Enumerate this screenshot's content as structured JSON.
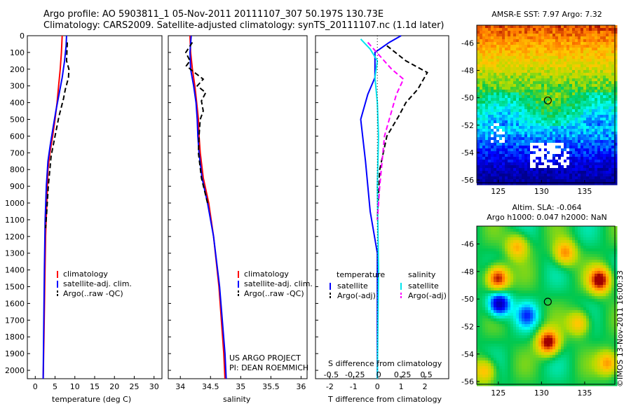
{
  "header": {
    "title_line1": "Argo profile: AO 5903811_1 05-Nov-2011 20111107_307 50.197S 130.73E",
    "title_line2": "Climatology: CARS2009. Satellite-adjusted climatology: synTS_20111107.nc (1.1d later)"
  },
  "credits": {
    "project": "US ARGO PROJECT",
    "pi": "PI: DEAN ROEMMICH",
    "imos": "©IMOS 13-Nov-2011 16:00:33"
  },
  "colors": {
    "climatology": "#ff0000",
    "satellite": "#0000ff",
    "argo": "#000000",
    "salinity_satellite": "#00e5ee",
    "salinity_argo": "#ff00ff"
  },
  "chart_data": [
    {
      "type": "line",
      "id": "temperature",
      "xlabel": "temperature (deg C)",
      "ylabel": "",
      "xlim": [
        -2,
        32
      ],
      "ylim": [
        2050,
        0
      ],
      "xticks": [
        0,
        5,
        10,
        15,
        20,
        25,
        30
      ],
      "yticks": [
        0,
        100,
        200,
        300,
        400,
        500,
        600,
        700,
        800,
        900,
        1000,
        1100,
        1200,
        1300,
        1400,
        1500,
        1600,
        1700,
        1800,
        1900,
        2000
      ],
      "legend": [
        "climatology",
        "satellite-adj. clim.",
        "Argo(..raw -QC)"
      ],
      "legend_position": "lower-center",
      "series": [
        {
          "name": "climatology",
          "style": "solid",
          "color": "#ff0000",
          "x": [
            6.8,
            6.6,
            6.3,
            5.9,
            5.5,
            5.0,
            4.4,
            3.7,
            3.2,
            2.9,
            2.6,
            2.4,
            2.2,
            2.0
          ],
          "y": [
            0,
            100,
            200,
            300,
            400,
            500,
            600,
            700,
            800,
            1000,
            1200,
            1500,
            1800,
            2050
          ]
        },
        {
          "name": "satellite-adj. clim.",
          "style": "solid",
          "color": "#0000ff",
          "x": [
            7.9,
            7.8,
            7.4,
            6.8,
            6.0,
            5.2,
            4.5,
            3.8,
            3.2,
            2.8,
            2.5,
            2.3,
            2.1,
            2.0
          ],
          "y": [
            0,
            60,
            150,
            250,
            350,
            450,
            550,
            650,
            750,
            900,
            1100,
            1400,
            1800,
            2050
          ]
        },
        {
          "name": "Argo(..raw -QC)",
          "style": "dashed",
          "color": "#000000",
          "x": [
            8.1,
            7.9,
            8.5,
            8.4,
            7.6,
            7.1,
            6.0,
            5.0,
            4.0,
            3.3,
            2.9,
            2.6
          ],
          "y": [
            40,
            150,
            200,
            250,
            320,
            380,
            480,
            600,
            720,
            900,
            1050,
            1150
          ]
        }
      ]
    },
    {
      "type": "line",
      "id": "salinity",
      "xlabel": "salinity",
      "ylabel": "",
      "xlim": [
        33.8,
        36.1
      ],
      "ylim": [
        2050,
        0
      ],
      "xticks": [
        34,
        34.5,
        35,
        35.5,
        36
      ],
      "legend": [
        "climatology",
        "satellite-adj. clim.",
        "Argo(..raw -QC)"
      ],
      "legend_position": "lower-center",
      "series": [
        {
          "name": "climatology",
          "style": "solid",
          "color": "#ff0000",
          "x": [
            34.16,
            34.17,
            34.2,
            34.24,
            34.27,
            34.3,
            34.31,
            34.33,
            34.38,
            34.47,
            34.55,
            34.64,
            34.72,
            34.74
          ],
          "y": [
            0,
            100,
            200,
            300,
            400,
            500,
            600,
            700,
            850,
            1000,
            1200,
            1500,
            1900,
            2050
          ]
        },
        {
          "name": "satellite-adj. clim.",
          "style": "solid",
          "color": "#0000ff",
          "x": [
            34.18,
            34.16,
            34.17,
            34.22,
            34.26,
            34.28,
            34.29,
            34.31,
            34.36,
            34.45,
            34.55,
            34.65,
            34.74,
            34.76
          ],
          "y": [
            0,
            100,
            200,
            300,
            400,
            500,
            600,
            700,
            850,
            1000,
            1200,
            1500,
            1900,
            2050
          ]
        },
        {
          "name": "Argo(..raw -QC)",
          "style": "dashed",
          "color": "#000000",
          "x": [
            34.2,
            34.09,
            34.16,
            34.1,
            34.2,
            34.38,
            34.28,
            34.42,
            34.35,
            34.38,
            34.33,
            34.31,
            34.3,
            34.35,
            34.45
          ],
          "y": [
            40,
            100,
            150,
            180,
            210,
            260,
            300,
            340,
            390,
            450,
            500,
            600,
            700,
            850,
            1000
          ]
        }
      ]
    },
    {
      "type": "line",
      "id": "difference",
      "xlabel": "T difference from climatology",
      "xlabel_top": "S difference from climatology",
      "ylabel": "",
      "xlim": [
        -2.6,
        3.0
      ],
      "ylim": [
        2050,
        0
      ],
      "xticks": [
        -2,
        -1,
        0,
        1,
        2
      ],
      "sticks_labels": [
        "-0.5",
        "-0.25",
        "0",
        "0.25",
        "0.5"
      ],
      "legend_groups": [
        "temperature",
        "salinity"
      ],
      "legend": [
        "satellite",
        "Argo(-adj)",
        "satellite",
        "Argo(-adj)"
      ],
      "legend_position": "lower-center",
      "series": [
        {
          "name": "satellite",
          "group": "temperature",
          "style": "solid",
          "color": "#0000ff",
          "x": [
            1.0,
            0.5,
            -0.1,
            -0.1,
            -0.4,
            -0.7,
            -0.5,
            -0.3,
            0.0,
            0.0
          ],
          "y": [
            0,
            40,
            100,
            250,
            350,
            500,
            750,
            1050,
            1300,
            2050
          ]
        },
        {
          "name": "Argo(-adj)",
          "group": "temperature",
          "style": "dashed",
          "color": "#000000",
          "x": [
            0.4,
            1.2,
            2.1,
            1.7,
            1.2,
            0.9,
            0.4,
            0.1,
            0.0
          ],
          "y": [
            60,
            150,
            220,
            320,
            400,
            480,
            600,
            800,
            1100
          ]
        },
        {
          "name": "satellite",
          "group": "salinity",
          "style": "solid",
          "color": "#00e5ee",
          "x": [
            -0.7,
            -0.3,
            0.0,
            -0.1,
            0.0,
            0.05,
            0.0,
            0.05,
            0.0
          ],
          "y": [
            20,
            80,
            150,
            250,
            400,
            600,
            900,
            1400,
            2050
          ]
        },
        {
          "name": "Argo(-adj)",
          "group": "salinity",
          "style": "dashed",
          "color": "#ff00ff",
          "x": [
            -0.4,
            0.6,
            1.1,
            0.8,
            0.6,
            0.3,
            0.1,
            0.0
          ],
          "y": [
            40,
            200,
            260,
            350,
            450,
            600,
            900,
            1100
          ]
        }
      ]
    },
    {
      "type": "heatmap",
      "id": "sst-map",
      "title": "AMSR-E SST: 7.97  Argo: 7.32",
      "xlim": [
        122.5,
        138.5
      ],
      "ylim": [
        -56.2,
        -44.7
      ],
      "xticks": [
        125,
        130,
        135
      ],
      "yticks": [
        -46,
        -48,
        -50,
        -52,
        -54,
        -56
      ],
      "marker": {
        "lon": 130.73,
        "lat": -50.197
      }
    },
    {
      "type": "heatmap",
      "id": "sla-map",
      "title_line1": "Altim. SLA: -0.064",
      "title_line2": "Argo h1000: 0.047 h2000: NaN",
      "xlim": [
        122.5,
        138.5
      ],
      "ylim": [
        -56.2,
        -44.7
      ],
      "xticks": [
        125,
        130,
        135
      ],
      "yticks": [
        -46,
        -48,
        -50,
        -52,
        -54,
        -56
      ],
      "marker": {
        "lon": 130.73,
        "lat": -50.197
      }
    }
  ]
}
